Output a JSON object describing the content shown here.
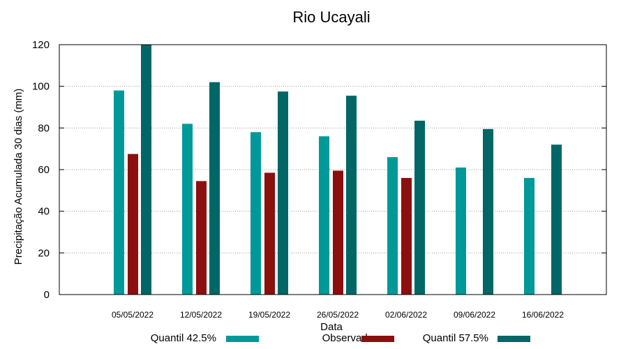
{
  "chart_data": {
    "type": "bar",
    "title": "Rio Ucayali",
    "xlabel": "Data",
    "ylabel": "Precipitação Acumulada 30 dias (mm)",
    "ylim": [
      0,
      120
    ],
    "yticks": [
      0,
      20,
      40,
      60,
      80,
      100,
      120
    ],
    "grid": true,
    "legend_position": "bottom",
    "categories": [
      "05/05/2022",
      "12/05/2022",
      "19/05/2022",
      "26/05/2022",
      "02/06/2022",
      "09/06/2022",
      "16/06/2022"
    ],
    "series": [
      {
        "name": "Quantil 42.5%",
        "color": "#009999",
        "values": [
          98,
          82,
          78,
          76,
          66,
          61,
          56
        ]
      },
      {
        "name": "Observado",
        "color": "#8b0f0f",
        "values": [
          67.5,
          54.5,
          58.5,
          59.5,
          56,
          null,
          null
        ]
      },
      {
        "name": "Quantil 57.5%",
        "color": "#006666",
        "values": [
          120,
          102,
          97.5,
          95.5,
          83.5,
          79.5,
          72
        ]
      }
    ]
  }
}
